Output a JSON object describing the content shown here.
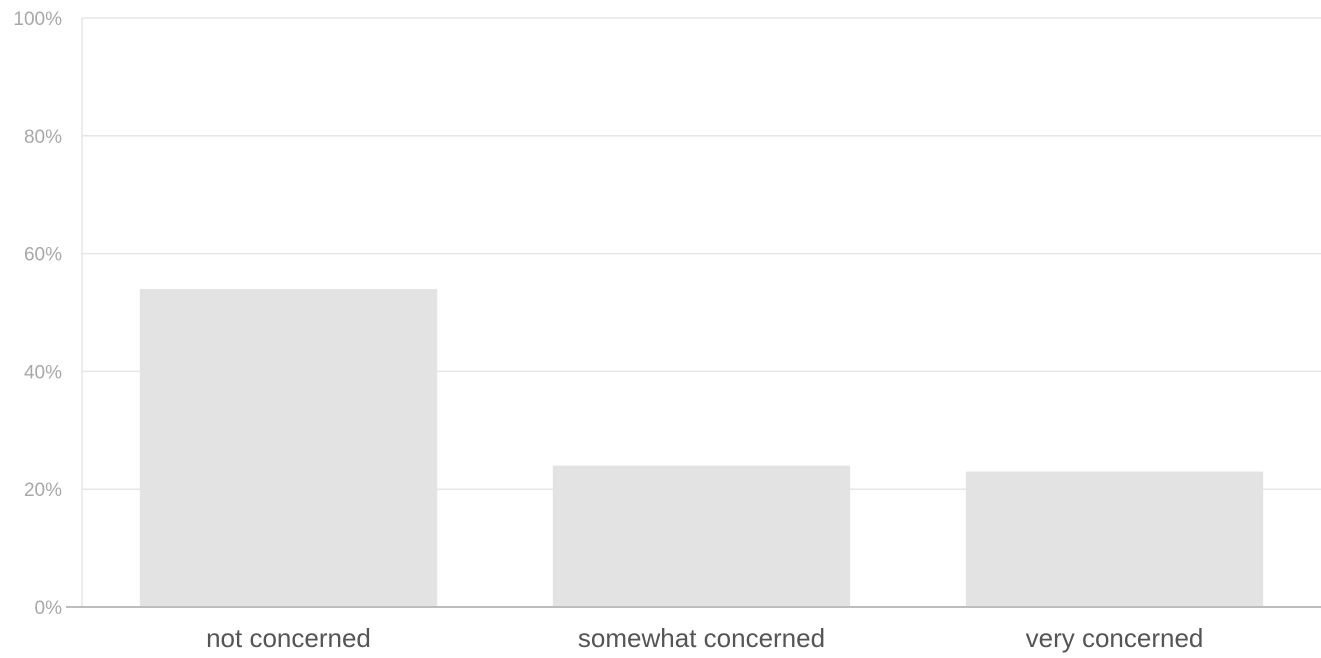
{
  "chart_data": {
    "type": "bar",
    "categories": [
      "not concerned",
      "somewhat concerned",
      "very concerned"
    ],
    "values": [
      54,
      24,
      23
    ],
    "unit": "%",
    "ylim": [
      0,
      100
    ],
    "y_ticks": [
      0,
      20,
      40,
      60,
      80,
      100
    ],
    "y_tick_labels": [
      "0%",
      "20%",
      "40%",
      "60%",
      "80%",
      "100%"
    ],
    "grid": true,
    "legend": "none",
    "title": "",
    "xlabel": "",
    "ylabel": "",
    "colors": {
      "bar": "#e3e3e3",
      "grid": "#e6e6e6",
      "axis": "#bdbdbd",
      "y_tick_text": "#a8a8a8",
      "x_tick_text": "#555555"
    }
  }
}
